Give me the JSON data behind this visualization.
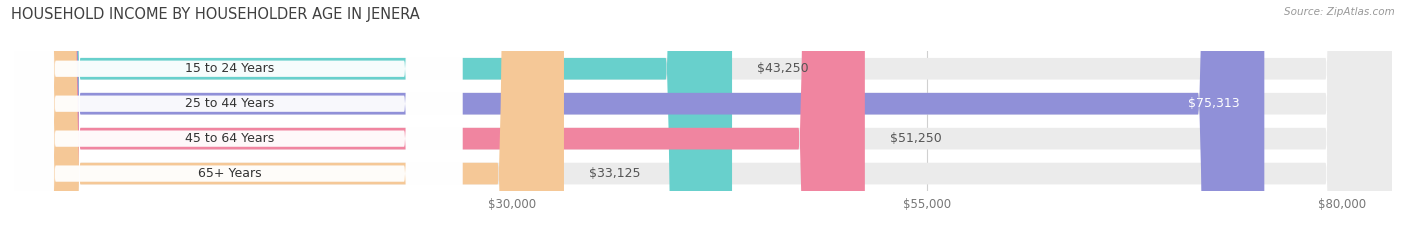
{
  "title": "HOUSEHOLD INCOME BY HOUSEHOLDER AGE IN JENERA",
  "source": "Source: ZipAtlas.com",
  "categories": [
    "15 to 24 Years",
    "25 to 44 Years",
    "45 to 64 Years",
    "65+ Years"
  ],
  "values": [
    43250,
    75313,
    51250,
    33125
  ],
  "bar_colors": [
    "#68d0cc",
    "#9090d8",
    "#f085a0",
    "#f5c897"
  ],
  "bar_bg_color": "#ebebeb",
  "value_labels": [
    "$43,250",
    "$75,313",
    "$51,250",
    "$33,125"
  ],
  "xlim": [
    0,
    83000
  ],
  "xticks": [
    30000,
    55000,
    80000
  ],
  "xtick_labels": [
    "$30,000",
    "$55,000",
    "$80,000"
  ],
  "background_color": "#ffffff",
  "title_fontsize": 10.5,
  "label_fontsize": 9,
  "tick_fontsize": 8.5,
  "value_label_75313_inside": true
}
